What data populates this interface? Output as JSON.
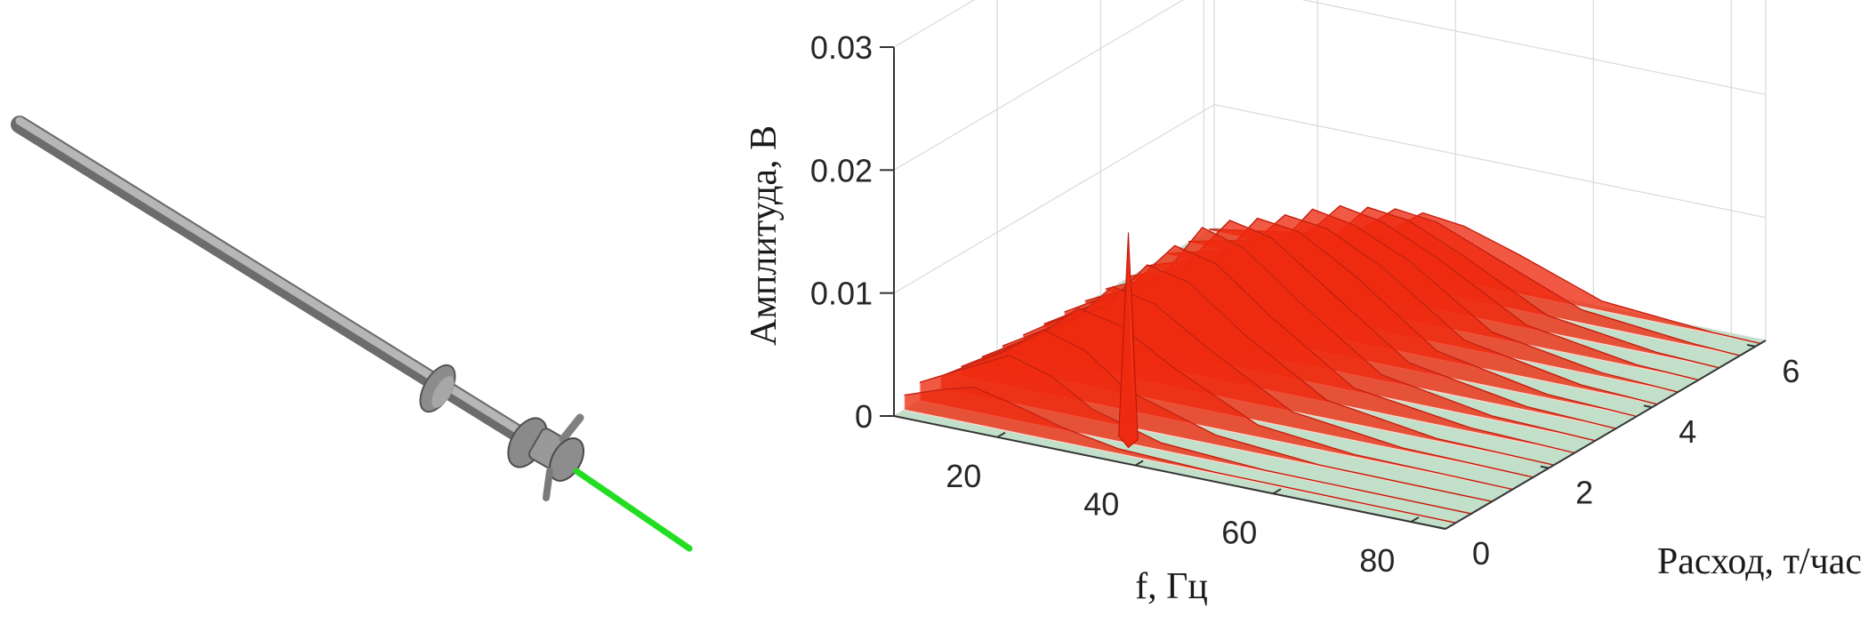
{
  "colors": {
    "pipe": "#9a9a9a",
    "probe": "#22dd22",
    "floor": "#c2dfca",
    "surface_high": "#ee2a10",
    "peak": "#f2e25a"
  },
  "illustration": {
    "icon": "pipe-with-sensor-probe"
  },
  "chart_data": {
    "type": "surface3d",
    "title": "",
    "xlabel": "f, Гц",
    "ylabel": "Расход, т/час",
    "zlabel": "Амплитуда, В",
    "x_ticks": [
      "20",
      "40",
      "60",
      "80"
    ],
    "y_ticks": [
      "0",
      "2",
      "4",
      "6"
    ],
    "z_ticks": [
      "0",
      "0.01",
      "0.02",
      "0.03"
    ],
    "xlim": [
      5,
      85
    ],
    "ylim": [
      0,
      6.2
    ],
    "zlim": [
      0,
      0.03
    ],
    "grid": true,
    "peak": {
      "x": 36,
      "y": 0.4,
      "z": 0.0175
    },
    "ridges": [
      {
        "y": 0.2,
        "points": [
          [
            5,
            0.0012
          ],
          [
            10,
            0.0022
          ],
          [
            15,
            0.003
          ],
          [
            20,
            0.0024
          ],
          [
            28,
            0.0012
          ],
          [
            36,
            0.0004
          ],
          [
            50,
            0.0001
          ],
          [
            85,
            0.0
          ]
        ]
      },
      {
        "y": 0.5,
        "points": [
          [
            5,
            0.0015
          ],
          [
            12,
            0.0035
          ],
          [
            18,
            0.0052
          ],
          [
            24,
            0.0042
          ],
          [
            30,
            0.0022
          ],
          [
            40,
            0.0006
          ],
          [
            55,
            0.0001
          ],
          [
            85,
            0.0
          ]
        ]
      },
      {
        "y": 0.9,
        "points": [
          [
            5,
            0.001
          ],
          [
            14,
            0.004
          ],
          [
            20,
            0.0065
          ],
          [
            26,
            0.0055
          ],
          [
            32,
            0.003
          ],
          [
            45,
            0.0008
          ],
          [
            60,
            0.0001
          ],
          [
            85,
            0.0
          ]
        ]
      },
      {
        "y": 1.3,
        "points": [
          [
            5,
            0.0008
          ],
          [
            16,
            0.0045
          ],
          [
            22,
            0.0075
          ],
          [
            28,
            0.0068
          ],
          [
            36,
            0.0042
          ],
          [
            48,
            0.001
          ],
          [
            62,
            0.0002
          ],
          [
            85,
            0.0
          ]
        ]
      },
      {
        "y": 1.7,
        "points": [
          [
            5,
            0.0006
          ],
          [
            18,
            0.005
          ],
          [
            24,
            0.0085
          ],
          [
            30,
            0.0078
          ],
          [
            38,
            0.005
          ],
          [
            50,
            0.0013
          ],
          [
            66,
            0.0002
          ],
          [
            85,
            0.0
          ]
        ]
      },
      {
        "y": 2.1,
        "points": [
          [
            5,
            0.0005
          ],
          [
            20,
            0.0055
          ],
          [
            26,
            0.0095
          ],
          [
            32,
            0.0088
          ],
          [
            40,
            0.0055
          ],
          [
            52,
            0.0015
          ],
          [
            68,
            0.0002
          ],
          [
            85,
            0.0
          ]
        ]
      },
      {
        "y": 2.5,
        "points": [
          [
            5,
            0.0004
          ],
          [
            20,
            0.0058
          ],
          [
            27,
            0.0102
          ],
          [
            33,
            0.0094
          ],
          [
            41,
            0.006
          ],
          [
            53,
            0.0016
          ],
          [
            70,
            0.0003
          ],
          [
            85,
            0.0
          ]
        ]
      },
      {
        "y": 2.9,
        "points": [
          [
            5,
            0.0003
          ],
          [
            22,
            0.006
          ],
          [
            28,
            0.0108
          ],
          [
            34,
            0.0098
          ],
          [
            42,
            0.0064
          ],
          [
            54,
            0.0018
          ],
          [
            70,
            0.0003
          ],
          [
            85,
            0.0
          ]
        ]
      },
      {
        "y": 3.3,
        "points": [
          [
            5,
            0.0003
          ],
          [
            22,
            0.0058
          ],
          [
            29,
            0.0105
          ],
          [
            35,
            0.0098
          ],
          [
            43,
            0.0066
          ],
          [
            55,
            0.0019
          ],
          [
            72,
            0.0003
          ],
          [
            85,
            0.0
          ]
        ]
      },
      {
        "y": 3.7,
        "points": [
          [
            5,
            0.0002
          ],
          [
            24,
            0.0055
          ],
          [
            30,
            0.0098
          ],
          [
            36,
            0.0094
          ],
          [
            44,
            0.0068
          ],
          [
            56,
            0.002
          ],
          [
            72,
            0.0003
          ],
          [
            85,
            0.0
          ]
        ]
      },
      {
        "y": 4.1,
        "points": [
          [
            5,
            0.0002
          ],
          [
            24,
            0.005
          ],
          [
            31,
            0.0092
          ],
          [
            37,
            0.0088
          ],
          [
            45,
            0.0066
          ],
          [
            57,
            0.002
          ],
          [
            74,
            0.0003
          ],
          [
            85,
            0.0
          ]
        ]
      },
      {
        "y": 4.5,
        "points": [
          [
            5,
            0.0002
          ],
          [
            26,
            0.0045
          ],
          [
            32,
            0.0088
          ],
          [
            38,
            0.0082
          ],
          [
            46,
            0.0062
          ],
          [
            58,
            0.0018
          ],
          [
            74,
            0.0003
          ],
          [
            85,
            0.0
          ]
        ]
      },
      {
        "y": 4.9,
        "points": [
          [
            5,
            0.0001
          ],
          [
            26,
            0.004
          ],
          [
            33,
            0.0082
          ],
          [
            39,
            0.0076
          ],
          [
            47,
            0.0056
          ],
          [
            60,
            0.0016
          ],
          [
            76,
            0.0002
          ],
          [
            85,
            0.0
          ]
        ]
      },
      {
        "y": 5.3,
        "points": [
          [
            5,
            0.0001
          ],
          [
            28,
            0.0035
          ],
          [
            34,
            0.0072
          ],
          [
            40,
            0.0068
          ],
          [
            48,
            0.0048
          ],
          [
            60,
            0.0014
          ],
          [
            76,
            0.0002
          ],
          [
            85,
            0.0
          ]
        ]
      },
      {
        "y": 5.7,
        "points": [
          [
            5,
            0.0001
          ],
          [
            28,
            0.003
          ],
          [
            35,
            0.0062
          ],
          [
            41,
            0.0058
          ],
          [
            49,
            0.004
          ],
          [
            62,
            0.0011
          ],
          [
            78,
            0.0002
          ],
          [
            85,
            0.0
          ]
        ]
      },
      {
        "y": 6.1,
        "points": [
          [
            5,
            0.0001
          ],
          [
            30,
            0.0025
          ],
          [
            36,
            0.005
          ],
          [
            42,
            0.0046
          ],
          [
            50,
            0.0032
          ],
          [
            62,
            0.0008
          ],
          [
            78,
            0.0001
          ],
          [
            85,
            0.0
          ]
        ]
      }
    ]
  }
}
